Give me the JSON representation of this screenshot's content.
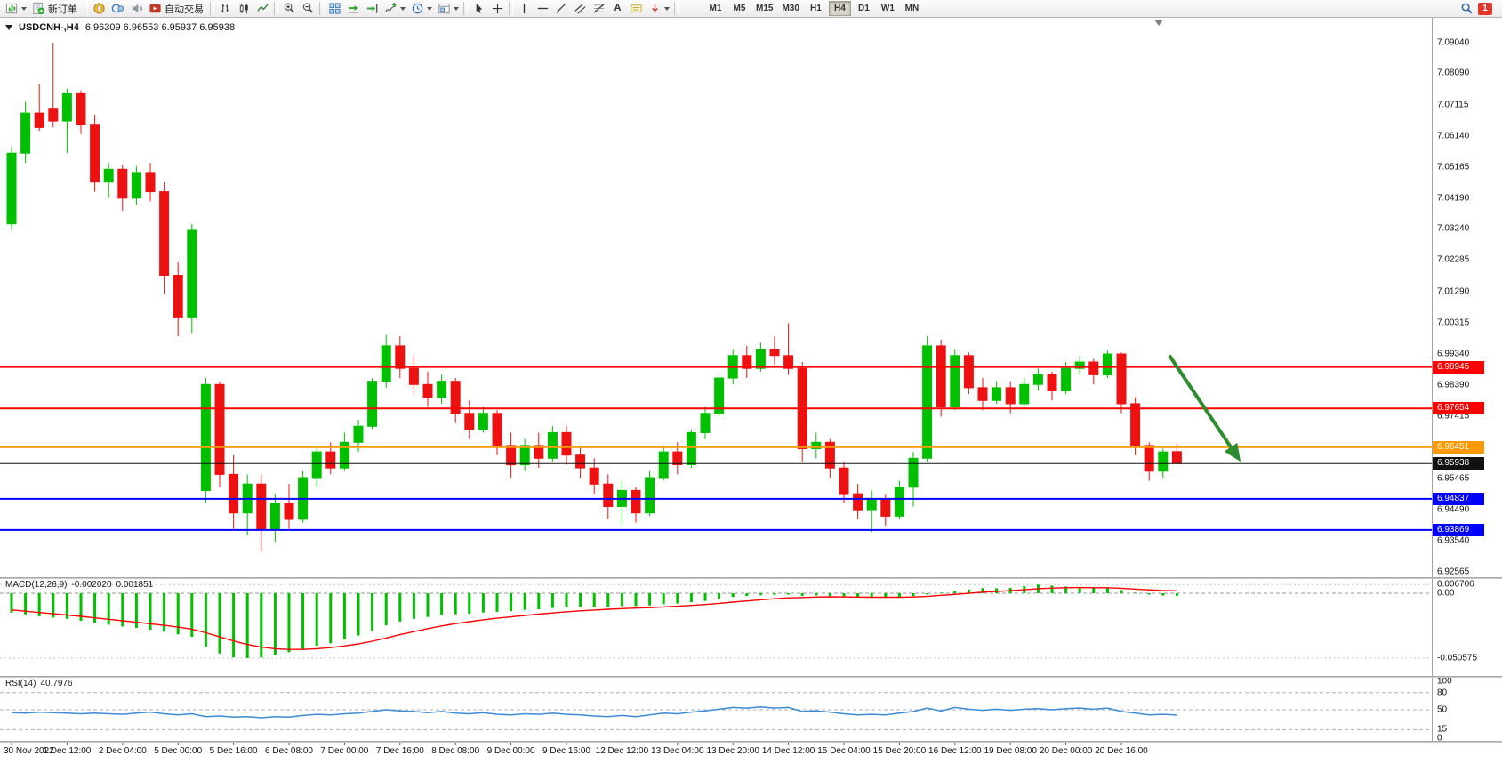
{
  "window": {
    "symbol_title": "USDCNH-,H4",
    "ohlc_line": "6.96309 6.96553 6.95937 6.95938"
  },
  "toolbar": {
    "new_order_label": "新订单",
    "autotrading_label": "自动交易",
    "text_tool_label": "A",
    "timeframes": [
      "M1",
      "M5",
      "M15",
      "M30",
      "H1",
      "H4",
      "D1",
      "W1",
      "MN"
    ],
    "active_timeframe": "H4",
    "notification_badge": "1"
  },
  "price_axis_labels": [
    "7.09040",
    "7.08090",
    "7.07115",
    "7.06140",
    "7.05165",
    "7.04190",
    "7.03240",
    "7.02285",
    "7.01290",
    "7.00315",
    "6.99340",
    "6.98390",
    "6.97415",
    "6.96440",
    "6.95465",
    "6.94490",
    "6.93540",
    "6.92565"
  ],
  "chart_data": {
    "type": "candlestick",
    "symbol": "USDCNH",
    "period": "H4",
    "up_color": "#00c000",
    "down_color": "#ee1111",
    "time_labels": [
      "30 Nov 2022",
      "1 Dec 12:00",
      "2 Dec 04:00",
      "5 Dec 00:00",
      "5 Dec 16:00",
      "6 Dec 08:00",
      "7 Dec 00:00",
      "7 Dec 16:00",
      "8 Dec 08:00",
      "9 Dec 00:00",
      "9 Dec 16:00",
      "12 Dec 12:00",
      "13 Dec 04:00",
      "13 Dec 20:00",
      "14 Dec 12:00",
      "15 Dec 04:00",
      "15 Dec 20:00",
      "16 Dec 12:00",
      "19 Dec 08:00",
      "20 Dec 00:00",
      "20 Dec 16:00"
    ],
    "candles_ohlc": [
      [
        7.034,
        7.058,
        7.032,
        7.056
      ],
      [
        7.056,
        7.072,
        7.053,
        7.0685
      ],
      [
        7.0685,
        7.0775,
        7.063,
        7.064
      ],
      [
        7.07,
        7.0904,
        7.064,
        7.066
      ],
      [
        7.066,
        7.076,
        7.056,
        7.0745
      ],
      [
        7.0745,
        7.0755,
        7.062,
        7.065
      ],
      [
        7.065,
        7.068,
        7.044,
        7.047
      ],
      [
        7.047,
        7.053,
        7.042,
        7.051
      ],
      [
        7.051,
        7.0525,
        7.038,
        7.042
      ],
      [
        7.042,
        7.052,
        7.04,
        7.05
      ],
      [
        7.05,
        7.053,
        7.041,
        7.044
      ],
      [
        7.044,
        7.047,
        7.012,
        7.018
      ],
      [
        7.018,
        7.022,
        6.999,
        7.005
      ],
      [
        7.005,
        7.034,
        7.0,
        7.032
      ],
      [
        6.951,
        6.986,
        6.947,
        6.984
      ],
      [
        6.984,
        6.985,
        6.952,
        6.956
      ],
      [
        6.956,
        6.962,
        6.939,
        6.944
      ],
      [
        6.944,
        6.956,
        6.937,
        6.953
      ],
      [
        6.953,
        6.956,
        6.932,
        6.939
      ],
      [
        6.939,
        6.95,
        6.935,
        6.947
      ],
      [
        6.947,
        6.953,
        6.939,
        6.942
      ],
      [
        6.942,
        6.957,
        6.941,
        6.955
      ],
      [
        6.955,
        6.965,
        6.952,
        6.963
      ],
      [
        6.963,
        6.966,
        6.956,
        6.958
      ],
      [
        6.958,
        6.969,
        6.957,
        6.966
      ],
      [
        6.966,
        6.973,
        6.963,
        6.971
      ],
      [
        6.971,
        6.986,
        6.97,
        6.985
      ],
      [
        6.985,
        6.9994,
        6.983,
        6.996
      ],
      [
        6.996,
        6.999,
        6.986,
        6.989
      ],
      [
        6.989,
        6.993,
        6.981,
        6.984
      ],
      [
        6.984,
        6.988,
        6.977,
        6.98
      ],
      [
        6.98,
        6.987,
        6.978,
        6.985
      ],
      [
        6.985,
        6.986,
        6.972,
        6.975
      ],
      [
        6.975,
        6.979,
        6.967,
        6.97
      ],
      [
        6.97,
        6.977,
        6.969,
        6.975
      ],
      [
        6.975,
        6.976,
        6.962,
        6.965
      ],
      [
        6.965,
        6.969,
        6.955,
        6.959
      ],
      [
        6.959,
        6.967,
        6.957,
        6.965
      ],
      [
        6.965,
        6.969,
        6.958,
        6.961
      ],
      [
        6.961,
        6.971,
        6.96,
        6.969
      ],
      [
        6.969,
        6.971,
        6.959,
        6.962
      ],
      [
        6.962,
        6.965,
        6.955,
        6.958
      ],
      [
        6.958,
        6.961,
        6.95,
        6.953
      ],
      [
        6.953,
        6.956,
        6.942,
        6.946
      ],
      [
        6.946,
        6.954,
        6.94,
        6.951
      ],
      [
        6.951,
        6.952,
        6.941,
        6.944
      ],
      [
        6.944,
        6.957,
        6.943,
        6.955
      ],
      [
        6.955,
        6.965,
        6.954,
        6.963
      ],
      [
        6.963,
        6.966,
        6.956,
        6.959
      ],
      [
        6.959,
        6.97,
        6.958,
        6.969
      ],
      [
        6.969,
        6.977,
        6.967,
        6.975
      ],
      [
        6.975,
        6.987,
        6.974,
        6.986
      ],
      [
        6.986,
        6.995,
        6.984,
        6.993
      ],
      [
        6.993,
        6.996,
        6.986,
        6.989
      ],
      [
        6.989,
        6.997,
        6.988,
        6.995
      ],
      [
        6.995,
        6.999,
        6.99,
        6.993
      ],
      [
        6.993,
        7.0031,
        6.987,
        6.989
      ],
      [
        6.989,
        6.991,
        6.96,
        6.964
      ],
      [
        6.964,
        6.969,
        6.961,
        6.966
      ],
      [
        6.966,
        6.967,
        6.955,
        6.958
      ],
      [
        6.958,
        6.96,
        6.947,
        6.95
      ],
      [
        6.95,
        6.953,
        6.942,
        6.945
      ],
      [
        6.945,
        6.951,
        6.938,
        6.948
      ],
      [
        6.948,
        6.95,
        6.94,
        6.943
      ],
      [
        6.943,
        6.954,
        6.942,
        6.952
      ],
      [
        6.952,
        6.963,
        6.946,
        6.961
      ],
      [
        6.961,
        6.999,
        6.96,
        6.996
      ],
      [
        6.996,
        6.998,
        6.974,
        6.977
      ],
      [
        6.977,
        6.995,
        6.976,
        6.993
      ],
      [
        6.993,
        6.994,
        6.981,
        6.983
      ],
      [
        6.983,
        6.986,
        6.976,
        6.979
      ],
      [
        6.979,
        6.985,
        6.978,
        6.983
      ],
      [
        6.983,
        6.985,
        6.975,
        6.978
      ],
      [
        6.978,
        6.986,
        6.977,
        6.984
      ],
      [
        6.984,
        6.989,
        6.982,
        6.987
      ],
      [
        6.987,
        6.988,
        6.979,
        6.982
      ],
      [
        6.982,
        6.991,
        6.981,
        6.989
      ],
      [
        6.989,
        6.993,
        6.987,
        6.991
      ],
      [
        6.991,
        6.992,
        6.984,
        6.987
      ],
      [
        6.987,
        6.9945,
        6.986,
        6.9935
      ],
      [
        6.9935,
        6.994,
        6.975,
        6.978
      ],
      [
        6.978,
        6.98,
        6.962,
        6.965
      ],
      [
        6.965,
        6.966,
        6.954,
        6.957
      ],
      [
        6.957,
        6.964,
        6.955,
        6.963
      ],
      [
        6.96309,
        6.96553,
        6.95937,
        6.95938
      ]
    ],
    "horizontal_lines": [
      {
        "price": 6.98945,
        "label": "6.98945",
        "color": "#ff0000",
        "width": 2
      },
      {
        "price": 6.97654,
        "label": "6.97654",
        "color": "#ff0000",
        "width": 2
      },
      {
        "price": 6.96451,
        "label": "6.96451",
        "color": "#ff9900",
        "width": 2
      },
      {
        "price": 6.95938,
        "label": "6.95938",
        "color": "#111111",
        "width": 1
      },
      {
        "price": 6.94837,
        "label": "6.94837",
        "color": "#0000ff",
        "width": 2
      },
      {
        "price": 6.93869,
        "label": "6.93869",
        "color": "#0000ff",
        "width": 2
      }
    ],
    "arrow_annotation": {
      "color": "#2e8b2e",
      "from_price": 6.993,
      "to_price": 6.9612
    },
    "macd": {
      "name": "MACD(12,26,9)",
      "value_main": "-0.002020",
      "value_signal": "0.001851",
      "histogram_color": "#00c000",
      "signal_color": "#ff0000",
      "axis_labels": [
        {
          "text": "0.006706",
          "value": 0.006706
        },
        {
          "text": "0.00",
          "value": 0
        },
        {
          "text": "-0.050575",
          "value": -0.050575
        }
      ],
      "histogram": [
        -0.015,
        -0.0165,
        -0.018,
        -0.019,
        -0.02,
        -0.0215,
        -0.023,
        -0.0245,
        -0.026,
        -0.027,
        -0.0285,
        -0.03,
        -0.032,
        -0.034,
        -0.042,
        -0.047,
        -0.05,
        -0.0506,
        -0.05,
        -0.048,
        -0.046,
        -0.044,
        -0.041,
        -0.039,
        -0.036,
        -0.033,
        -0.029,
        -0.025,
        -0.022,
        -0.02,
        -0.0185,
        -0.017,
        -0.0165,
        -0.016,
        -0.015,
        -0.0145,
        -0.014,
        -0.013,
        -0.0125,
        -0.0115,
        -0.011,
        -0.0105,
        -0.0105,
        -0.0105,
        -0.01,
        -0.01,
        -0.0095,
        -0.0085,
        -0.008,
        -0.007,
        -0.006,
        -0.0045,
        -0.003,
        -0.0022,
        -0.0015,
        -0.0012,
        -0.001,
        -0.002,
        -0.0018,
        -0.0022,
        -0.003,
        -0.0035,
        -0.0035,
        -0.0034,
        -0.003,
        -0.0022,
        -0.001,
        0.0005,
        0.0018,
        0.003,
        0.004,
        0.0038,
        0.0042,
        0.0055,
        0.0067,
        0.006,
        0.0052,
        0.0048,
        0.004,
        0.0042,
        0.0025,
        0.0005,
        -0.001,
        -0.0018,
        -0.002
      ],
      "signal": [
        -0.013,
        -0.014,
        -0.015,
        -0.016,
        -0.017,
        -0.018,
        -0.0192,
        -0.0203,
        -0.0215,
        -0.0226,
        -0.0238,
        -0.025,
        -0.0264,
        -0.028,
        -0.0308,
        -0.034,
        -0.0372,
        -0.04,
        -0.042,
        -0.0432,
        -0.0438,
        -0.0438,
        -0.0432,
        -0.0424,
        -0.0411,
        -0.0395,
        -0.0374,
        -0.0349,
        -0.0323,
        -0.0299,
        -0.0276,
        -0.0255,
        -0.0237,
        -0.0222,
        -0.0207,
        -0.0195,
        -0.0184,
        -0.0173,
        -0.0163,
        -0.0154,
        -0.0145,
        -0.0137,
        -0.0131,
        -0.0125,
        -0.012,
        -0.0116,
        -0.0112,
        -0.0107,
        -0.0101,
        -0.0095,
        -0.0088,
        -0.0079,
        -0.0069,
        -0.006,
        -0.0051,
        -0.0043,
        -0.0036,
        -0.0033,
        -0.003,
        -0.0028,
        -0.0029,
        -0.003,
        -0.0031,
        -0.0031,
        -0.0031,
        -0.0029,
        -0.0025,
        -0.0016,
        -0.0009,
        -0.0001,
        0.0008,
        0.0014,
        0.002,
        0.0027,
        0.0035,
        0.004,
        0.0043,
        0.0044,
        0.0043,
        0.0043,
        0.0039,
        0.0032,
        0.0026,
        0.0021,
        0.00185
      ]
    },
    "rsi": {
      "name": "RSI(14)",
      "value": "40.7976",
      "line_color": "#3d8bd4",
      "levels": [
        {
          "text": "100",
          "value": 100
        },
        {
          "text": "80",
          "value": 80
        },
        {
          "text": "50",
          "value": 50
        },
        {
          "text": "15",
          "value": 15
        },
        {
          "text": "0",
          "value": 0
        }
      ],
      "values": [
        45,
        44,
        46,
        45,
        44,
        43,
        44,
        43,
        42,
        44,
        46,
        43,
        41,
        43,
        38,
        39,
        37,
        38,
        36,
        38,
        37,
        40,
        42,
        41,
        43,
        44,
        47,
        50,
        48,
        47,
        45,
        47,
        44,
        43,
        45,
        42,
        41,
        43,
        42,
        44,
        42,
        41,
        39,
        38,
        40,
        38,
        41,
        44,
        43,
        46,
        48,
        51,
        54,
        53,
        55,
        53,
        54,
        47,
        48,
        46,
        43,
        41,
        42,
        41,
        44,
        47,
        53,
        48,
        54,
        51,
        49,
        51,
        49,
        51,
        52,
        50,
        52,
        53,
        51,
        53,
        47,
        44,
        41,
        42,
        40.8
      ]
    }
  }
}
